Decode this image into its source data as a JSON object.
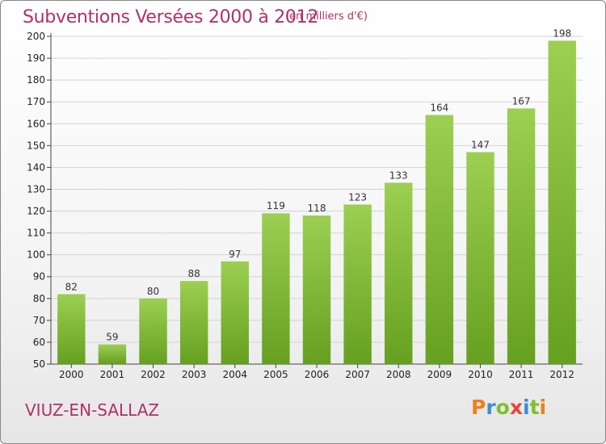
{
  "header": {
    "title": "Subventions Versées 2000 à 2012",
    "unit": "(en milliers d'€)"
  },
  "footer": {
    "commune": "VIUZ-EN-SALLAZ",
    "logo": "Proxiti",
    "logo_colors": [
      "#f07f1a",
      "#3a8fd8",
      "#7fbf2a",
      "#e8453c",
      "#3a8fd8",
      "#7fbf2a",
      "#f07f1a"
    ]
  },
  "colors": {
    "bar_top": "#9ccf52",
    "bar_bottom": "#66a020",
    "title": "#b0306a"
  },
  "chart_data": {
    "type": "bar",
    "categories": [
      "2000",
      "2001",
      "2002",
      "2003",
      "2004",
      "2005",
      "2006",
      "2007",
      "2008",
      "2009",
      "2010",
      "2011",
      "2012"
    ],
    "values": [
      82,
      59,
      80,
      88,
      97,
      119,
      118,
      123,
      133,
      164,
      147,
      167,
      198
    ],
    "title": "Subventions Versées 2000 à 2012",
    "ylim": [
      50,
      200
    ],
    "yticks": [
      50,
      60,
      70,
      80,
      90,
      100,
      110,
      120,
      130,
      140,
      150,
      160,
      170,
      180,
      190,
      200
    ],
    "grid": true,
    "data_labels": true
  }
}
